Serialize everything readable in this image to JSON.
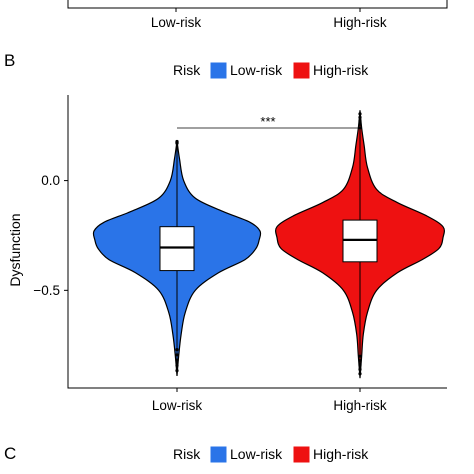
{
  "top_panel": {
    "tick_labels": [
      "Low-risk",
      "High-risk"
    ]
  },
  "panel_b": {
    "panel_label": "B",
    "legend_title": "Risk",
    "legend_items": [
      {
        "label": "Low-risk",
        "color": "#2a74e8"
      },
      {
        "label": "High-risk",
        "color": "#ee1111"
      }
    ],
    "significance": "***"
  },
  "panel_c": {
    "panel_label": "C",
    "legend_title": "Risk",
    "legend_items": [
      {
        "label": "Low-risk",
        "color": "#2a74e8"
      },
      {
        "label": "High-risk",
        "color": "#ee1111"
      }
    ]
  },
  "chart_data": {
    "type": "violin",
    "ylabel": "Dysfunction",
    "categories": [
      "Low-risk",
      "High-risk"
    ],
    "yticks": [
      0.0,
      -0.5
    ],
    "ytick_labels": [
      "0.0",
      "−0.5"
    ],
    "ylim": [
      -0.945,
      0.39
    ],
    "grid": false,
    "legend_position": "top",
    "series": [
      {
        "category": "Low-risk",
        "color": "#2a74e8",
        "y_max": 0.18,
        "y_min": -0.89,
        "whisker_high": 0.17,
        "whisker_low": -0.77,
        "q3": -0.21,
        "median": -0.305,
        "q1": -0.41,
        "density_profile": [
          [
            0.18,
            0.0
          ],
          [
            0.1,
            0.03
          ],
          [
            0.0,
            0.08
          ],
          [
            -0.08,
            0.22
          ],
          [
            -0.14,
            0.55
          ],
          [
            -0.19,
            0.88
          ],
          [
            -0.23,
            1.0
          ],
          [
            -0.27,
            0.99
          ],
          [
            -0.31,
            0.95
          ],
          [
            -0.36,
            0.82
          ],
          [
            -0.42,
            0.5
          ],
          [
            -0.5,
            0.22
          ],
          [
            -0.6,
            0.1
          ],
          [
            -0.7,
            0.05
          ],
          [
            -0.8,
            0.02
          ],
          [
            -0.89,
            0.0
          ]
        ]
      },
      {
        "category": "High-risk",
        "color": "#ee1111",
        "y_max": 0.32,
        "y_min": -0.9,
        "whisker_high": 0.24,
        "whisker_low": -0.8,
        "q3": -0.18,
        "median": -0.27,
        "q1": -0.37,
        "density_profile": [
          [
            0.32,
            0.0
          ],
          [
            0.24,
            0.02
          ],
          [
            0.16,
            0.05
          ],
          [
            0.06,
            0.09
          ],
          [
            -0.04,
            0.2
          ],
          [
            -0.1,
            0.45
          ],
          [
            -0.16,
            0.8
          ],
          [
            -0.21,
            1.0
          ],
          [
            -0.26,
            1.0
          ],
          [
            -0.31,
            0.95
          ],
          [
            -0.36,
            0.75
          ],
          [
            -0.42,
            0.45
          ],
          [
            -0.5,
            0.2
          ],
          [
            -0.6,
            0.09
          ],
          [
            -0.7,
            0.04
          ],
          [
            -0.8,
            0.02
          ],
          [
            -0.9,
            0.0
          ]
        ]
      }
    ]
  }
}
